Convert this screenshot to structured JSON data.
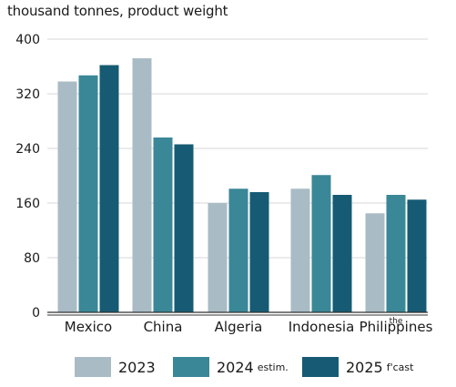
{
  "chart_data": {
    "type": "bar",
    "ylabel": "thousand tonnes, product weight",
    "ylim": [
      0,
      400
    ],
    "yticks": [
      "0",
      "80",
      "160",
      "240",
      "320",
      "400"
    ],
    "categories": [
      {
        "top": "",
        "main": "Mexico"
      },
      {
        "top": "",
        "main": "China"
      },
      {
        "top": "",
        "main": "Algeria"
      },
      {
        "top": "",
        "main": "Indonesia"
      },
      {
        "top": "the",
        "main": "Philippines"
      }
    ],
    "series": [
      {
        "name": "2023",
        "suffix": "",
        "color": "#a9bcc6",
        "values": [
          338,
          372,
          160,
          181,
          145
        ]
      },
      {
        "name": "2024",
        "suffix": "estim.",
        "color": "#3a8797",
        "values": [
          347,
          256,
          181,
          201,
          172
        ]
      },
      {
        "name": "2025",
        "suffix": "f'cast",
        "color": "#165b73",
        "values": [
          362,
          246,
          176,
          172,
          165
        ]
      }
    ],
    "grid": true,
    "legend_position": "bottom"
  }
}
